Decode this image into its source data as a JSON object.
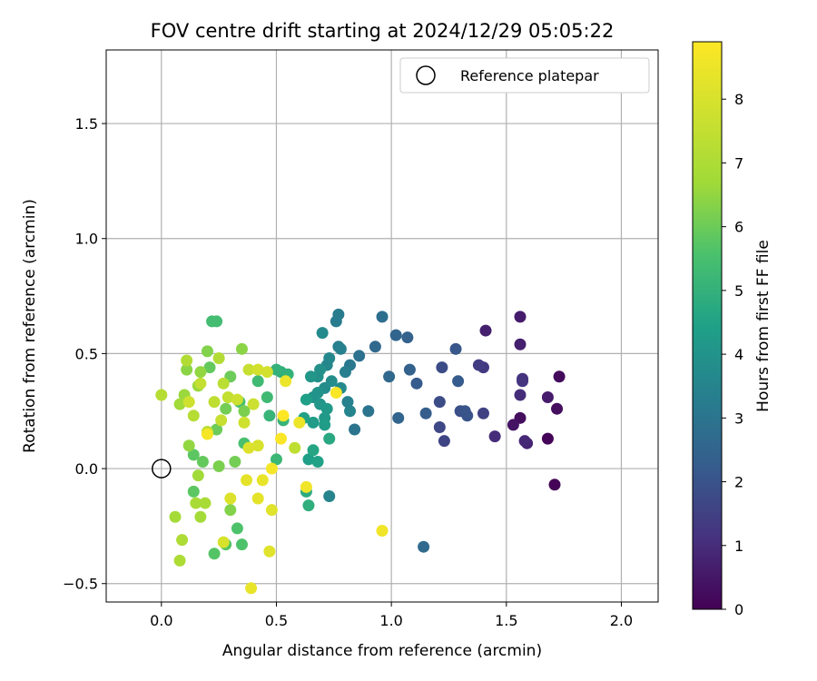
{
  "chart_data": {
    "type": "scatter",
    "title": "FOV centre drift starting at 2024/12/29 05:05:22",
    "xlabel": "Angular distance from reference (arcmin)",
    "ylabel": "Rotation from reference (arcmin)",
    "xlim": [
      -0.24,
      2.16
    ],
    "ylim": [
      -0.58,
      1.82
    ],
    "xticks": [
      0.0,
      0.5,
      1.0,
      1.5,
      2.0
    ],
    "xtick_labels": [
      "0.0",
      "0.5",
      "1.0",
      "1.5",
      "2.0"
    ],
    "yticks": [
      -0.5,
      0.0,
      0.5,
      1.0,
      1.5
    ],
    "ytick_labels": [
      "−0.5",
      "0.0",
      "0.5",
      "1.0",
      "1.5"
    ],
    "grid": true,
    "legend": {
      "position": "top-right",
      "entries": [
        "Reference platepar"
      ]
    },
    "reference_point": {
      "x": 0.0,
      "y": 0.0,
      "marker": "open-circle"
    },
    "colorbar": {
      "label": "Hours from first FF file",
      "colormap": "viridis",
      "range": [
        0,
        8.9
      ],
      "ticks": [
        0,
        1,
        2,
        3,
        4,
        5,
        6,
        7,
        8
      ],
      "tick_labels": [
        "0",
        "1",
        "2",
        "3",
        "4",
        "5",
        "6",
        "7",
        "8"
      ]
    },
    "points": [
      {
        "x": 1.71,
        "y": -0.07,
        "c": 0.05
      },
      {
        "x": 1.68,
        "y": 0.13,
        "c": 0.1
      },
      {
        "x": 1.73,
        "y": 0.4,
        "c": 0.2
      },
      {
        "x": 1.72,
        "y": 0.26,
        "c": 0.3
      },
      {
        "x": 1.56,
        "y": 0.22,
        "c": 0.3
      },
      {
        "x": 1.53,
        "y": 0.19,
        "c": 0.4
      },
      {
        "x": 1.68,
        "y": 0.31,
        "c": 0.6
      },
      {
        "x": 1.56,
        "y": 0.66,
        "c": 0.6
      },
      {
        "x": 1.41,
        "y": 0.6,
        "c": 0.7
      },
      {
        "x": 1.56,
        "y": 0.54,
        "c": 0.7
      },
      {
        "x": 1.59,
        "y": 0.11,
        "c": 0.8
      },
      {
        "x": 1.58,
        "y": 0.12,
        "c": 0.9
      },
      {
        "x": 1.45,
        "y": 0.14,
        "c": 1.0
      },
      {
        "x": 1.56,
        "y": 0.32,
        "c": 1.0
      },
      {
        "x": 1.57,
        "y": 0.39,
        "c": 1.1
      },
      {
        "x": 1.57,
        "y": 0.38,
        "c": 1.2
      },
      {
        "x": 1.4,
        "y": 0.44,
        "c": 1.3
      },
      {
        "x": 1.38,
        "y": 0.45,
        "c": 1.4
      },
      {
        "x": 1.4,
        "y": 0.24,
        "c": 1.5
      },
      {
        "x": 1.23,
        "y": 0.12,
        "c": 1.6
      },
      {
        "x": 1.21,
        "y": 0.18,
        "c": 1.7
      },
      {
        "x": 1.21,
        "y": 0.29,
        "c": 1.8
      },
      {
        "x": 1.22,
        "y": 0.44,
        "c": 1.8
      },
      {
        "x": 1.3,
        "y": 0.25,
        "c": 1.9
      },
      {
        "x": 1.33,
        "y": 0.23,
        "c": 2.0
      },
      {
        "x": 1.32,
        "y": 0.25,
        "c": 2.0
      },
      {
        "x": 1.28,
        "y": 0.52,
        "c": 2.1
      },
      {
        "x": 1.29,
        "y": 0.38,
        "c": 2.2
      },
      {
        "x": 1.11,
        "y": 0.37,
        "c": 2.2
      },
      {
        "x": 1.15,
        "y": 0.24,
        "c": 2.3
      },
      {
        "x": 1.08,
        "y": 0.43,
        "c": 2.4
      },
      {
        "x": 1.07,
        "y": 0.57,
        "c": 2.4
      },
      {
        "x": 1.02,
        "y": 0.58,
        "c": 2.5
      },
      {
        "x": 1.03,
        "y": 0.22,
        "c": 2.5
      },
      {
        "x": 0.93,
        "y": 0.53,
        "c": 2.6
      },
      {
        "x": 0.99,
        "y": 0.4,
        "c": 2.6
      },
      {
        "x": 1.14,
        "y": -0.34,
        "c": 2.7
      },
      {
        "x": 0.96,
        "y": 0.66,
        "c": 2.8
      },
      {
        "x": 0.86,
        "y": 0.49,
        "c": 2.9
      },
      {
        "x": 0.9,
        "y": 0.25,
        "c": 3.0
      },
      {
        "x": 0.84,
        "y": 0.17,
        "c": 3.0
      },
      {
        "x": 0.82,
        "y": 0.45,
        "c": 3.1
      },
      {
        "x": 0.76,
        "y": 0.64,
        "c": 3.2
      },
      {
        "x": 0.77,
        "y": 0.67,
        "c": 3.2
      },
      {
        "x": 0.8,
        "y": 0.42,
        "c": 3.3
      },
      {
        "x": 0.77,
        "y": 0.53,
        "c": 3.3
      },
      {
        "x": 0.78,
        "y": 0.52,
        "c": 3.4
      },
      {
        "x": 0.81,
        "y": 0.29,
        "c": 3.4
      },
      {
        "x": 0.82,
        "y": 0.25,
        "c": 3.5
      },
      {
        "x": 0.73,
        "y": -0.12,
        "c": 3.5
      },
      {
        "x": 0.73,
        "y": 0.48,
        "c": 3.6
      },
      {
        "x": 0.72,
        "y": 0.45,
        "c": 3.6
      },
      {
        "x": 0.7,
        "y": 0.59,
        "c": 3.7
      },
      {
        "x": 0.78,
        "y": 0.35,
        "c": 3.7
      },
      {
        "x": 0.74,
        "y": 0.38,
        "c": 3.8
      },
      {
        "x": 0.71,
        "y": 0.35,
        "c": 3.8
      },
      {
        "x": 0.68,
        "y": 0.4,
        "c": 3.9
      },
      {
        "x": 0.69,
        "y": 0.43,
        "c": 3.9
      },
      {
        "x": 0.66,
        "y": 0.31,
        "c": 4.0
      },
      {
        "x": 0.68,
        "y": 0.33,
        "c": 4.0
      },
      {
        "x": 0.69,
        "y": 0.28,
        "c": 4.1
      },
      {
        "x": 0.65,
        "y": 0.4,
        "c": 4.1
      },
      {
        "x": 0.71,
        "y": 0.22,
        "c": 4.2
      },
      {
        "x": 0.72,
        "y": 0.26,
        "c": 4.2
      },
      {
        "x": 0.71,
        "y": 0.19,
        "c": 4.3
      },
      {
        "x": 0.66,
        "y": 0.2,
        "c": 4.3
      },
      {
        "x": 0.63,
        "y": 0.3,
        "c": 4.4
      },
      {
        "x": 0.64,
        "y": 0.04,
        "c": 4.4
      },
      {
        "x": 0.62,
        "y": 0.22,
        "c": 4.5
      },
      {
        "x": 0.68,
        "y": 0.03,
        "c": 4.5
      },
      {
        "x": 0.66,
        "y": 0.08,
        "c": 4.6
      },
      {
        "x": 0.73,
        "y": 0.13,
        "c": 4.7
      },
      {
        "x": 0.63,
        "y": -0.1,
        "c": 4.8
      },
      {
        "x": 0.64,
        "y": -0.16,
        "c": 4.9
      },
      {
        "x": 0.52,
        "y": 0.42,
        "c": 4.9
      },
      {
        "x": 0.5,
        "y": 0.43,
        "c": 5.0
      },
      {
        "x": 0.55,
        "y": 0.41,
        "c": 5.0
      },
      {
        "x": 0.47,
        "y": 0.23,
        "c": 5.1
      },
      {
        "x": 0.53,
        "y": 0.21,
        "c": 5.1
      },
      {
        "x": 0.5,
        "y": 0.04,
        "c": 5.2
      },
      {
        "x": 0.42,
        "y": 0.38,
        "c": 5.3
      },
      {
        "x": 0.46,
        "y": 0.31,
        "c": 5.3
      },
      {
        "x": 0.24,
        "y": 0.64,
        "c": 5.4
      },
      {
        "x": 0.22,
        "y": 0.64,
        "c": 5.4
      },
      {
        "x": 0.34,
        "y": 0.29,
        "c": 5.5
      },
      {
        "x": 0.36,
        "y": 0.11,
        "c": 5.5
      },
      {
        "x": 0.33,
        "y": -0.26,
        "c": 5.6
      },
      {
        "x": 0.35,
        "y": -0.33,
        "c": 5.6
      },
      {
        "x": 0.28,
        "y": -0.33,
        "c": 5.7
      },
      {
        "x": 0.23,
        "y": -0.37,
        "c": 5.7
      },
      {
        "x": 0.14,
        "y": -0.1,
        "c": 5.8
      },
      {
        "x": 0.14,
        "y": 0.06,
        "c": 5.8
      },
      {
        "x": 0.18,
        "y": 0.03,
        "c": 5.9
      },
      {
        "x": 0.21,
        "y": 0.44,
        "c": 5.9
      },
      {
        "x": 0.3,
        "y": 0.4,
        "c": 6.0
      },
      {
        "x": 0.24,
        "y": 0.17,
        "c": 6.0
      },
      {
        "x": 0.28,
        "y": 0.26,
        "c": 6.1
      },
      {
        "x": 0.32,
        "y": 0.03,
        "c": 6.1
      },
      {
        "x": 0.25,
        "y": 0.01,
        "c": 6.2
      },
      {
        "x": 0.36,
        "y": 0.25,
        "c": 6.2
      },
      {
        "x": 0.3,
        "y": -0.18,
        "c": 6.3
      },
      {
        "x": 0.2,
        "y": 0.51,
        "c": 6.3
      },
      {
        "x": 0.35,
        "y": 0.52,
        "c": 6.4
      },
      {
        "x": 0.11,
        "y": 0.43,
        "c": 6.4
      },
      {
        "x": 0.17,
        "y": 0.42,
        "c": 6.5
      },
      {
        "x": 0.12,
        "y": 0.1,
        "c": 6.5
      },
      {
        "x": 0.16,
        "y": 0.36,
        "c": 6.6
      },
      {
        "x": 0.1,
        "y": 0.32,
        "c": 6.6
      },
      {
        "x": 0.08,
        "y": 0.28,
        "c": 6.7
      },
      {
        "x": 0.16,
        "y": -0.03,
        "c": 6.7
      },
      {
        "x": 0.06,
        "y": -0.21,
        "c": 6.8
      },
      {
        "x": 0.17,
        "y": -0.21,
        "c": 6.8
      },
      {
        "x": 0.19,
        "y": -0.15,
        "c": 6.9
      },
      {
        "x": 0.15,
        "y": -0.15,
        "c": 6.9
      },
      {
        "x": 0.08,
        "y": -0.4,
        "c": 7.0
      },
      {
        "x": 0.09,
        "y": -0.31,
        "c": 7.0
      },
      {
        "x": 0.11,
        "y": 0.47,
        "c": 7.1
      },
      {
        "x": 0.25,
        "y": 0.48,
        "c": 7.1
      },
      {
        "x": 0.0,
        "y": 0.32,
        "c": 7.2
      },
      {
        "x": 0.14,
        "y": 0.23,
        "c": 7.2
      },
      {
        "x": 0.27,
        "y": 0.37,
        "c": 7.3
      },
      {
        "x": 0.2,
        "y": 0.16,
        "c": 7.3
      },
      {
        "x": 0.23,
        "y": 0.29,
        "c": 7.4
      },
      {
        "x": 0.58,
        "y": 0.09,
        "c": 7.4
      },
      {
        "x": 0.17,
        "y": 0.37,
        "c": 7.5
      },
      {
        "x": 0.29,
        "y": 0.31,
        "c": 7.5
      },
      {
        "x": 0.38,
        "y": 0.43,
        "c": 7.6
      },
      {
        "x": 0.26,
        "y": 0.21,
        "c": 7.6
      },
      {
        "x": 0.33,
        "y": 0.3,
        "c": 7.7
      },
      {
        "x": 0.4,
        "y": 0.28,
        "c": 7.7
      },
      {
        "x": 0.12,
        "y": 0.29,
        "c": 7.8
      },
      {
        "x": 0.36,
        "y": 0.2,
        "c": 7.8
      },
      {
        "x": 0.42,
        "y": 0.43,
        "c": 7.9
      },
      {
        "x": 0.46,
        "y": 0.42,
        "c": 7.9
      },
      {
        "x": 0.42,
        "y": 0.1,
        "c": 8.0
      },
      {
        "x": 0.27,
        "y": -0.32,
        "c": 8.0
      },
      {
        "x": 0.38,
        "y": 0.09,
        "c": 8.1
      },
      {
        "x": 0.3,
        "y": -0.13,
        "c": 8.1
      },
      {
        "x": 0.47,
        "y": -0.36,
        "c": 8.2
      },
      {
        "x": 0.48,
        "y": -0.18,
        "c": 8.2
      },
      {
        "x": 0.37,
        "y": -0.05,
        "c": 8.3
      },
      {
        "x": 0.42,
        "y": -0.13,
        "c": 8.3
      },
      {
        "x": 0.44,
        "y": -0.05,
        "c": 8.4
      },
      {
        "x": 0.39,
        "y": -0.52,
        "c": 8.4
      },
      {
        "x": 0.54,
        "y": 0.38,
        "c": 8.5
      },
      {
        "x": 0.6,
        "y": 0.2,
        "c": 8.5
      },
      {
        "x": 0.63,
        "y": -0.08,
        "c": 8.6
      },
      {
        "x": 0.96,
        "y": -0.27,
        "c": 8.6
      },
      {
        "x": 0.48,
        "y": 0.0,
        "c": 8.7
      },
      {
        "x": 0.2,
        "y": 0.15,
        "c": 8.7
      },
      {
        "x": 0.52,
        "y": 0.13,
        "c": 8.8
      },
      {
        "x": 0.76,
        "y": 0.33,
        "c": 8.8
      },
      {
        "x": 0.53,
        "y": 0.23,
        "c": 8.9
      }
    ]
  }
}
